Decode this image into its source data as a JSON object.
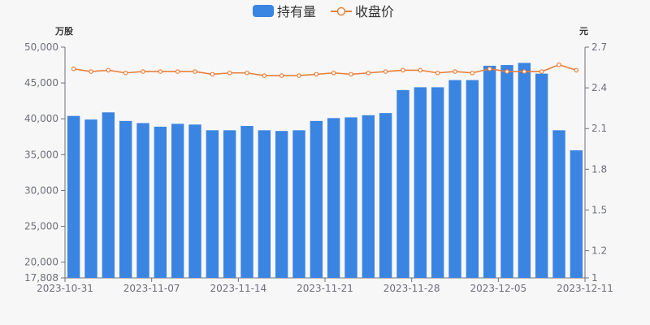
{
  "chart_data": {
    "type": "bar+line",
    "x": [
      "2023-10-31",
      "2023-11-01",
      "2023-11-02",
      "2023-11-03",
      "2023-11-06",
      "2023-11-07",
      "2023-11-08",
      "2023-11-09",
      "2023-11-10",
      "2023-11-13",
      "2023-11-14",
      "2023-11-15",
      "2023-11-16",
      "2023-11-17",
      "2023-11-20",
      "2023-11-21",
      "2023-11-22",
      "2023-11-23",
      "2023-11-24",
      "2023-11-27",
      "2023-11-28",
      "2023-11-29",
      "2023-11-30",
      "2023-12-01",
      "2023-12-04",
      "2023-12-05",
      "2023-12-06",
      "2023-12-07",
      "2023-12-08",
      "2023-12-11"
    ],
    "x_tick_labels": [
      "2023-10-31",
      "2023-11-07",
      "2023-11-14",
      "2023-11-21",
      "2023-11-28",
      "2023-12-05",
      "2023-12-11"
    ],
    "series": [
      {
        "name": "持有量",
        "type": "bar",
        "axis": "left",
        "color": "#3a84e2",
        "values": [
          40400,
          39900,
          40900,
          39700,
          39400,
          38900,
          39300,
          39200,
          38400,
          38400,
          39000,
          38400,
          38300,
          38400,
          39700,
          40100,
          40200,
          40500,
          40800,
          44000,
          44400,
          44400,
          45400,
          45400,
          47400,
          47500,
          47800,
          46300,
          38400,
          35600
        ]
      },
      {
        "name": "收盘价",
        "type": "line",
        "axis": "right",
        "color": "#e8803c",
        "values": [
          2.54,
          2.52,
          2.53,
          2.51,
          2.52,
          2.52,
          2.52,
          2.52,
          2.5,
          2.51,
          2.51,
          2.49,
          2.49,
          2.49,
          2.5,
          2.51,
          2.5,
          2.51,
          2.52,
          2.53,
          2.53,
          2.51,
          2.52,
          2.51,
          2.54,
          2.52,
          2.52,
          2.52,
          2.57,
          2.53
        ]
      }
    ],
    "y_left": {
      "unit": "万股",
      "ticks": [
        17808,
        20000,
        25000,
        30000,
        35000,
        40000,
        45000,
        50000
      ],
      "tick_labels": [
        "17,808",
        "20,000",
        "25,000",
        "30,000",
        "35,000",
        "40,000",
        "45,000",
        "50,000"
      ],
      "range": [
        17808,
        50000
      ]
    },
    "y_right": {
      "unit": "元",
      "ticks": [
        1,
        1.2,
        1.5,
        1.8,
        2.1,
        2.4,
        2.7
      ],
      "tick_labels": [
        "1",
        "1.2",
        "1.5",
        "1.8",
        "2.1",
        "2.4",
        "2.7"
      ],
      "range": [
        1,
        2.7
      ]
    },
    "legend": {
      "position": "top-center",
      "items": [
        "持有量",
        "收盘价"
      ]
    },
    "grid": false
  }
}
